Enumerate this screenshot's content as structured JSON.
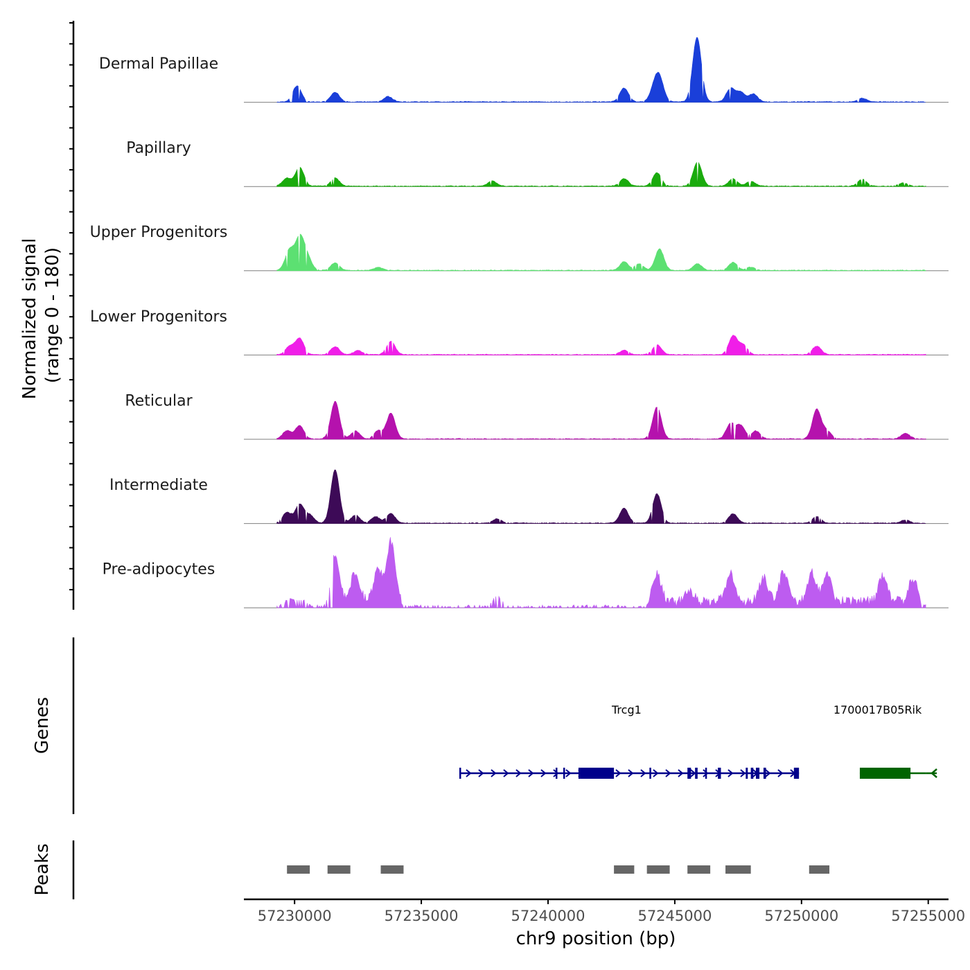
{
  "chart_data": {
    "type": "area",
    "title": "",
    "xlabel": "chr9 position (bp)",
    "ylabel": "Normalized signal",
    "ylabel_range": "(range 0 - 180)",
    "ylim": [
      0,
      180
    ],
    "xlim": [
      57228000,
      57255800
    ],
    "x_ticks": [
      57230000,
      57235000,
      57240000,
      57245000,
      57250000,
      57255000
    ],
    "x_tick_labels": [
      "57230000",
      "57235000",
      "57240000",
      "57245000",
      "57250000",
      "57255000"
    ],
    "signal_range_bp": [
      57229300,
      57254900
    ],
    "series": [
      {
        "name": "Dermal Papillae",
        "color": "#1a3fd9",
        "peaks": [
          [
            57230100,
            30
          ],
          [
            57231600,
            18
          ],
          [
            57233700,
            10
          ],
          [
            57243000,
            26
          ],
          [
            57244200,
            25
          ],
          [
            57244400,
            40
          ],
          [
            57245900,
            70
          ],
          [
            57245850,
            52
          ],
          [
            57247200,
            25
          ],
          [
            57247600,
            18
          ],
          [
            57248100,
            15
          ],
          [
            57252400,
            7
          ]
        ]
      },
      {
        "name": "Papillary",
        "color": "#1aab0d",
        "peaks": [
          [
            57229700,
            15
          ],
          [
            57230200,
            35
          ],
          [
            57231600,
            15
          ],
          [
            57237800,
            10
          ],
          [
            57243000,
            14
          ],
          [
            57244300,
            25
          ],
          [
            57245900,
            45
          ],
          [
            57247300,
            14
          ],
          [
            57248000,
            9
          ],
          [
            57252400,
            13
          ],
          [
            57254000,
            6
          ]
        ]
      },
      {
        "name": "Upper Progenitors",
        "color": "#5ce072",
        "peaks": [
          [
            57229800,
            38
          ],
          [
            57230200,
            60
          ],
          [
            57230500,
            25
          ],
          [
            57231600,
            14
          ],
          [
            57233300,
            6
          ],
          [
            57243000,
            16
          ],
          [
            57243600,
            12
          ],
          [
            57244400,
            40
          ],
          [
            57245900,
            12
          ],
          [
            57247300,
            15
          ],
          [
            57248000,
            6
          ]
        ]
      },
      {
        "name": "Lower Progenitors",
        "color": "#f01ee8",
        "peaks": [
          [
            57229800,
            15
          ],
          [
            57230200,
            30
          ],
          [
            57231600,
            15
          ],
          [
            57232500,
            8
          ],
          [
            57233800,
            25
          ],
          [
            57243000,
            8
          ],
          [
            57244300,
            18
          ],
          [
            57247300,
            35
          ],
          [
            57247700,
            18
          ],
          [
            57250600,
            16
          ]
        ]
      },
      {
        "name": "Reticular",
        "color": "#b512ad",
        "peaks": [
          [
            57229700,
            15
          ],
          [
            57230200,
            25
          ],
          [
            57231600,
            70
          ],
          [
            57232400,
            15
          ],
          [
            57233300,
            15
          ],
          [
            57233800,
            48
          ],
          [
            57244300,
            60
          ],
          [
            57247200,
            28
          ],
          [
            57247600,
            25
          ],
          [
            57248200,
            15
          ],
          [
            57250600,
            55
          ],
          [
            57251000,
            15
          ],
          [
            57254100,
            10
          ]
        ]
      },
      {
        "name": "Intermediate",
        "color": "#3d0a57",
        "peaks": [
          [
            57229700,
            20
          ],
          [
            57230200,
            35
          ],
          [
            57230600,
            15
          ],
          [
            57231600,
            100
          ],
          [
            57232400,
            15
          ],
          [
            57233200,
            12
          ],
          [
            57233800,
            18
          ],
          [
            57238000,
            8
          ],
          [
            57243000,
            28
          ],
          [
            57244300,
            55
          ],
          [
            57247300,
            18
          ],
          [
            57250600,
            12
          ],
          [
            57254100,
            6
          ]
        ]
      },
      {
        "name": "Pre-adipocytes",
        "color": "#bd5cf0",
        "peaks": [
          [
            57229800,
            15
          ],
          [
            57230300,
            12
          ],
          [
            57231600,
            85
          ],
          [
            57232400,
            55
          ],
          [
            57233300,
            60
          ],
          [
            57233800,
            110
          ],
          [
            57238000,
            20
          ],
          [
            57244300,
            50
          ],
          [
            57245600,
            20
          ],
          [
            57247200,
            55
          ],
          [
            57248500,
            45
          ],
          [
            57249300,
            55
          ],
          [
            57250400,
            55
          ],
          [
            57251000,
            50
          ],
          [
            57253200,
            45
          ],
          [
            57254400,
            40
          ]
        ]
      }
    ]
  },
  "genes": {
    "title": "Genes",
    "items": [
      {
        "name": "Trcg1",
        "start": 57236500,
        "end": 57249900,
        "strand": "+",
        "color": "#00008b",
        "label_pos": 57243100,
        "exons": [
          [
            57236500,
            57236560
          ],
          [
            57240300,
            57240350
          ],
          [
            57240600,
            57240640
          ],
          [
            57241200,
            57242600
          ],
          [
            57244000,
            57244050
          ],
          [
            57245500,
            57245640
          ],
          [
            57245800,
            57245900
          ],
          [
            57246200,
            57246240
          ],
          [
            57246700,
            57246820
          ],
          [
            57247800,
            57247880
          ],
          [
            57248000,
            57248100
          ],
          [
            57248200,
            57248340
          ],
          [
            57248500,
            57248600
          ],
          [
            57249700,
            57249900
          ]
        ]
      },
      {
        "name": "1700017B05Rik",
        "start": 57252300,
        "end": 57254900,
        "strand": "-",
        "color": "#006400",
        "label_pos": 57253000,
        "exons": [
          [
            57252300,
            57254300
          ]
        ]
      }
    ]
  },
  "peaks": {
    "title": "Peaks",
    "color": "#666666",
    "regions": [
      [
        57229700,
        57230600
      ],
      [
        57231300,
        57232200
      ],
      [
        57233400,
        57234300
      ],
      [
        57242600,
        57243400
      ],
      [
        57243900,
        57244800
      ],
      [
        57245500,
        57246400
      ],
      [
        57247000,
        57248000
      ],
      [
        57250300,
        57251100
      ]
    ]
  }
}
